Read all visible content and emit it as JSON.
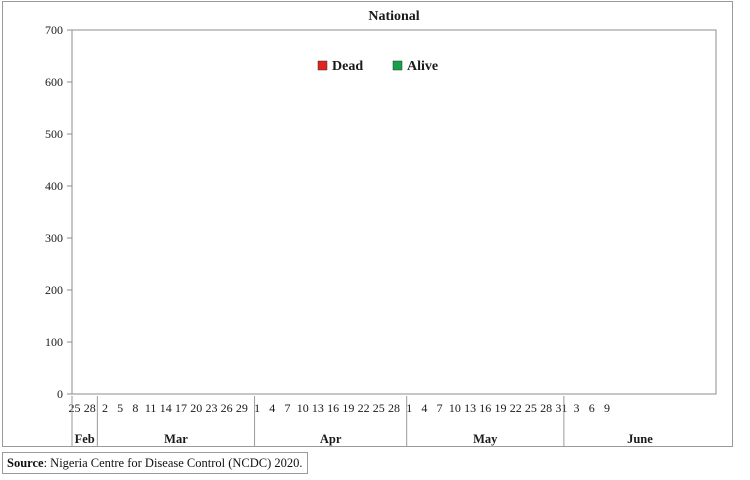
{
  "source": {
    "label": "Source",
    "text": ": Nigeria Centre for Disease Control (NCDC) 2020."
  },
  "chart_data": {
    "type": "bar",
    "stacked": true,
    "title": "National",
    "xlabel": "",
    "ylabel": "",
    "ylim": [
      0,
      700
    ],
    "yticks": [
      0,
      100,
      200,
      300,
      400,
      500,
      600,
      700
    ],
    "grid": false,
    "legend_position": "top-center",
    "colors": {
      "Dead": "#e0231c",
      "Alive": "#16a04a"
    },
    "categories": [
      "Feb 25",
      "Feb 26",
      "Feb 27",
      "Feb 28",
      "Feb 29",
      "Mar 1",
      "Mar 2",
      "Mar 3",
      "Mar 4",
      "Mar 5",
      "Mar 6",
      "Mar 7",
      "Mar 8",
      "Mar 9",
      "Mar 10",
      "Mar 11",
      "Mar 12",
      "Mar 13",
      "Mar 14",
      "Mar 15",
      "Mar 16",
      "Mar 17",
      "Mar 18",
      "Mar 19",
      "Mar 20",
      "Mar 21",
      "Mar 22",
      "Mar 23",
      "Mar 24",
      "Mar 25",
      "Mar 26",
      "Mar 27",
      "Mar 28",
      "Mar 29",
      "Mar 30",
      "Mar 31",
      "Apr 1",
      "Apr 2",
      "Apr 3",
      "Apr 4",
      "Apr 5",
      "Apr 6",
      "Apr 7",
      "Apr 8",
      "Apr 9",
      "Apr 10",
      "Apr 11",
      "Apr 12",
      "Apr 13",
      "Apr 14",
      "Apr 15",
      "Apr 16",
      "Apr 17",
      "Apr 18",
      "Apr 19",
      "Apr 20",
      "Apr 21",
      "Apr 22",
      "Apr 23",
      "Apr 24",
      "Apr 25",
      "Apr 26",
      "Apr 27",
      "Apr 28",
      "Apr 29",
      "Apr 30",
      "May 1",
      "May 2",
      "May 3",
      "May 4",
      "May 5",
      "May 6",
      "May 7",
      "May 8",
      "May 9",
      "May 10",
      "May 11",
      "May 12",
      "May 13",
      "May 14",
      "May 15",
      "May 16",
      "May 17",
      "May 18",
      "May 19",
      "May 20",
      "May 21",
      "May 22",
      "May 23",
      "May 24",
      "May 25",
      "May 26",
      "May 27",
      "May 28",
      "May 29",
      "May 30",
      "May 31",
      "Jun 1",
      "Jun 2",
      "Jun 3",
      "Jun 4",
      "Jun 5",
      "Jun 6",
      "Jun 7",
      "Jun 8",
      "Jun 9",
      "Jun 10",
      "Jun 11",
      "Jun 12",
      "Jun 13",
      "Jun 14",
      "Jun 15",
      "Jun 16",
      "Jun 17",
      "Jun 18",
      "Jun 19",
      "Jun 20",
      "Jun 21",
      "Jun 22",
      "Jun 23",
      "Jun 24",
      "Jun 25",
      "Jun 26",
      "Jun 27",
      "Jun 28",
      "Jun 29",
      "Jun 30"
    ],
    "series": [
      {
        "name": "Dead",
        "values": [
          0,
          0,
          0,
          0,
          0,
          0,
          0,
          0,
          0,
          0,
          0,
          0,
          0,
          0,
          0,
          0,
          0,
          0,
          0,
          0,
          0,
          0,
          0,
          0,
          0,
          0,
          0,
          0,
          0,
          0,
          0,
          0,
          0,
          0,
          0,
          0,
          0,
          0,
          0,
          0,
          0,
          0,
          0,
          0,
          0,
          0,
          0,
          0,
          0,
          0,
          0,
          0,
          0,
          0,
          0,
          0,
          0,
          0,
          0,
          0,
          0,
          0,
          0,
          0,
          0,
          0,
          0,
          0,
          0,
          0,
          0,
          0,
          0,
          0,
          0,
          0,
          0,
          0,
          0,
          0,
          0,
          0,
          0,
          0,
          0,
          0,
          0,
          0,
          0,
          0,
          0,
          0,
          0,
          0,
          0,
          0,
          0,
          0,
          0,
          0,
          0,
          0,
          0,
          0,
          0,
          0,
          0,
          0,
          0,
          0,
          0,
          0,
          0,
          0,
          0,
          0,
          0,
          0,
          0,
          0,
          0,
          0,
          0,
          0,
          0,
          0,
          0
        ]
      },
      {
        "name": "Alive",
        "values": [
          0,
          0,
          0,
          0,
          0,
          0,
          0,
          0,
          0,
          0,
          0,
          0,
          0,
          0,
          0,
          0,
          0,
          0,
          0,
          0,
          0,
          0,
          0,
          0,
          0,
          0,
          0,
          0,
          0,
          0,
          0,
          0,
          0,
          0,
          0,
          0,
          0,
          0,
          0,
          0,
          0,
          0,
          0,
          0,
          0,
          0,
          0,
          0,
          0,
          0,
          0,
          0,
          0,
          0,
          0,
          0,
          0,
          0,
          0,
          0,
          0,
          0,
          0,
          0,
          0,
          0,
          0,
          0,
          0,
          0,
          0,
          0,
          0,
          0,
          0,
          0,
          0,
          0,
          0,
          0,
          0,
          0,
          0,
          0,
          0,
          0,
          0,
          0,
          0,
          0,
          0,
          0,
          0,
          0,
          0,
          0,
          0,
          0,
          0,
          0,
          0,
          0,
          0,
          0,
          0,
          0,
          0,
          0,
          0,
          0,
          0,
          0,
          0,
          0,
          0,
          0,
          0,
          0,
          0,
          0,
          0,
          0,
          0,
          0,
          0,
          0,
          0
        ]
      }
    ],
    "x_tick_labels": [
      {
        "at": "Feb 25",
        "text": "25"
      },
      {
        "at": "Feb 28",
        "text": "28"
      },
      {
        "at": "Mar 2",
        "text": "2"
      },
      {
        "at": "Mar 5",
        "text": "5"
      },
      {
        "at": "Mar 8",
        "text": "8"
      },
      {
        "at": "Mar 11",
        "text": "11"
      },
      {
        "at": "Mar 14",
        "text": "14"
      },
      {
        "at": "Mar 17",
        "text": "17"
      },
      {
        "at": "Mar 20",
        "text": "20"
      },
      {
        "at": "Mar 23",
        "text": "23"
      },
      {
        "at": "Mar 26",
        "text": "26"
      },
      {
        "at": "Mar 29",
        "text": "29"
      },
      {
        "at": "Apr 1",
        "text": "1"
      },
      {
        "at": "Apr 4",
        "text": "4"
      },
      {
        "at": "Apr 7",
        "text": "7"
      },
      {
        "at": "Apr 10",
        "text": "10"
      },
      {
        "at": "Apr 13",
        "text": "13"
      },
      {
        "at": "Apr 16",
        "text": "16"
      },
      {
        "at": "Apr 19",
        "text": "19"
      },
      {
        "at": "Apr 22",
        "text": "22"
      },
      {
        "at": "Apr 25",
        "text": "25"
      },
      {
        "at": "Apr 28",
        "text": "28"
      },
      {
        "at": "May 1",
        "text": "1"
      },
      {
        "at": "May 4",
        "text": "4"
      },
      {
        "at": "May 7",
        "text": "7"
      },
      {
        "at": "May 10",
        "text": "10"
      },
      {
        "at": "May 13",
        "text": "13"
      },
      {
        "at": "May 16",
        "text": "16"
      },
      {
        "at": "May 19",
        "text": "19"
      },
      {
        "at": "May 22",
        "text": "22"
      },
      {
        "at": "May 25",
        "text": "25"
      },
      {
        "at": "May 28",
        "text": "28"
      },
      {
        "at": "May 31",
        "text": "31"
      },
      {
        "at": "Jun 3",
        "text": "3"
      },
      {
        "at": "Jun 6",
        "text": "6"
      },
      {
        "at": "Jun 9",
        "text": "9"
      }
    ],
    "month_groups": [
      {
        "label": "Feb",
        "start": "Feb 25",
        "end": "Feb 29"
      },
      {
        "label": "Mar",
        "start": "Mar 1",
        "end": "Mar 31"
      },
      {
        "label": "Apr",
        "start": "Apr 1",
        "end": "Apr 30"
      },
      {
        "label": "May",
        "start": "May 1",
        "end": "May 31"
      },
      {
        "label": "June",
        "start": "Jun 1",
        "end": "Jun 30"
      }
    ]
  }
}
